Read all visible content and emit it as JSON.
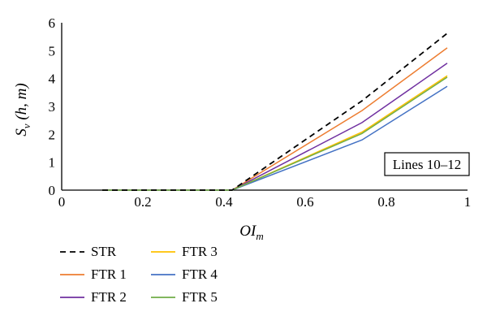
{
  "chart_data": {
    "type": "line",
    "xlabel": "OI",
    "xlabel_sub": "m",
    "ylabel": "S",
    "ylabel_sub": "v",
    "ylabel_suffix": " (h, m)",
    "xlim": [
      0,
      1
    ],
    "ylim": [
      0,
      6
    ],
    "x_ticks": [
      0,
      0.2,
      0.4,
      0.6,
      0.8,
      1
    ],
    "x_tick_labels": [
      "0",
      "0.2",
      "0.4",
      "0.6",
      "0.8",
      "1"
    ],
    "y_ticks": [
      0,
      1,
      2,
      3,
      4,
      5,
      6
    ],
    "y_tick_labels": [
      "0",
      "1",
      "2",
      "3",
      "4",
      "5",
      "6"
    ],
    "grid": false,
    "legend_position": "bottom-left",
    "annotation": "Lines 10–12",
    "series": [
      {
        "name": "STR",
        "color": "#000000",
        "dash": true,
        "x": [
          0.1,
          0.42,
          0.74,
          0.95
        ],
        "y": [
          0,
          0,
          3.2,
          5.62
        ]
      },
      {
        "name": "FTR 1",
        "color": "#ED7D31",
        "dash": false,
        "x": [
          0.1,
          0.42,
          0.74,
          0.95
        ],
        "y": [
          0,
          0,
          2.85,
          5.1
        ]
      },
      {
        "name": "FTR 2",
        "color": "#7030A0",
        "dash": false,
        "x": [
          0.1,
          0.42,
          0.74,
          0.95
        ],
        "y": [
          0,
          0,
          2.42,
          4.55
        ]
      },
      {
        "name": "FTR 3",
        "color": "#FFC000",
        "dash": false,
        "x": [
          0.1,
          0.42,
          0.74,
          0.95
        ],
        "y": [
          0,
          0,
          2.08,
          4.1
        ]
      },
      {
        "name": "FTR 4",
        "color": "#4472C4",
        "dash": false,
        "x": [
          0.1,
          0.42,
          0.74,
          0.95
        ],
        "y": [
          0,
          0,
          1.8,
          3.72
        ]
      },
      {
        "name": "FTR 5",
        "color": "#70AD47",
        "dash": false,
        "x": [
          0.1,
          0.42,
          0.74,
          0.95
        ],
        "y": [
          0,
          0,
          2.03,
          4.05
        ]
      }
    ]
  }
}
